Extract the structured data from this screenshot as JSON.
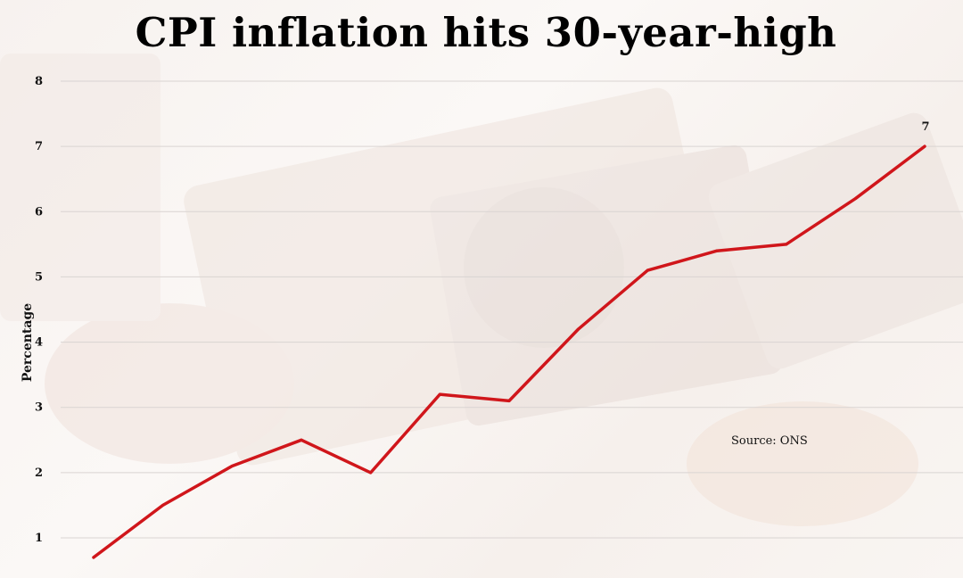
{
  "chart_data": {
    "type": "line",
    "title": "CPI inflation hits 30-year-high",
    "ylabel": "Percentage",
    "xlabel": "",
    "ylim": [
      0.7,
      8
    ],
    "y_ticks": [
      "1",
      "2",
      "3",
      "4",
      "5",
      "6",
      "7",
      "8"
    ],
    "grid": "horizontal",
    "source_note": "Source: ONS",
    "series": [
      {
        "values": [
          0.7,
          1.5,
          2.1,
          2.5,
          2.0,
          3.2,
          3.1,
          4.2,
          5.1,
          5.4,
          5.5,
          6.2,
          7.0
        ],
        "color": "#d0161b",
        "end_label": "7"
      }
    ]
  }
}
